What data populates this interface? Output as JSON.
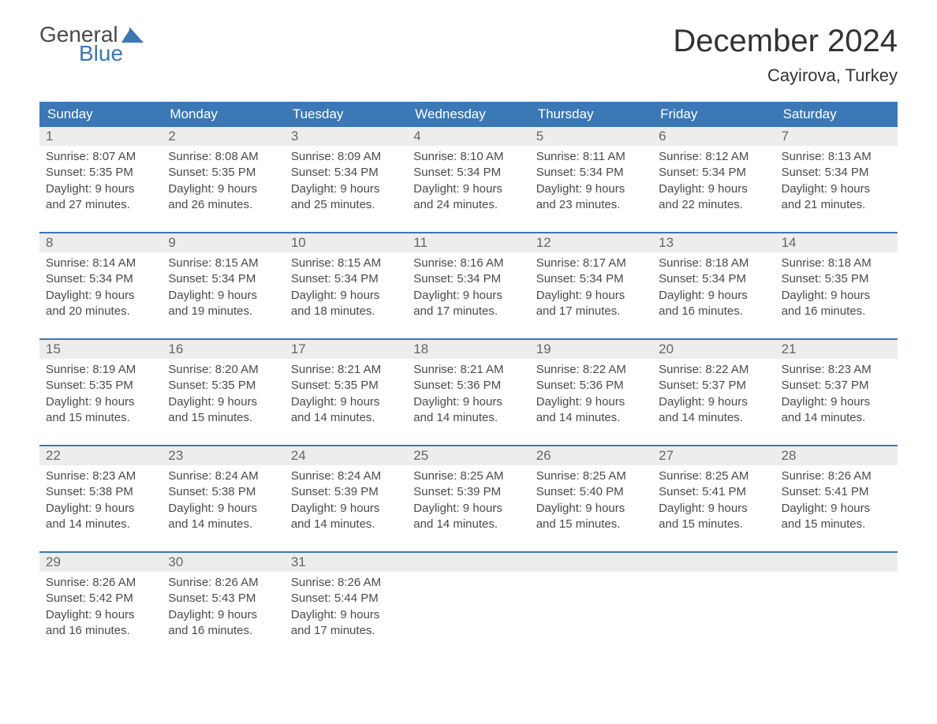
{
  "logo": {
    "line1": "General",
    "line2": "Blue"
  },
  "title": "December 2024",
  "location": "Cayirova, Turkey",
  "header_bg": "#3b78b5",
  "days_of_week": [
    "Sunday",
    "Monday",
    "Tuesday",
    "Wednesday",
    "Thursday",
    "Friday",
    "Saturday"
  ],
  "weeks": [
    [
      {
        "n": "1",
        "sr": "8:07 AM",
        "ss": "5:35 PM",
        "dl": "9 hours and 27 minutes."
      },
      {
        "n": "2",
        "sr": "8:08 AM",
        "ss": "5:35 PM",
        "dl": "9 hours and 26 minutes."
      },
      {
        "n": "3",
        "sr": "8:09 AM",
        "ss": "5:34 PM",
        "dl": "9 hours and 25 minutes."
      },
      {
        "n": "4",
        "sr": "8:10 AM",
        "ss": "5:34 PM",
        "dl": "9 hours and 24 minutes."
      },
      {
        "n": "5",
        "sr": "8:11 AM",
        "ss": "5:34 PM",
        "dl": "9 hours and 23 minutes."
      },
      {
        "n": "6",
        "sr": "8:12 AM",
        "ss": "5:34 PM",
        "dl": "9 hours and 22 minutes."
      },
      {
        "n": "7",
        "sr": "8:13 AM",
        "ss": "5:34 PM",
        "dl": "9 hours and 21 minutes."
      }
    ],
    [
      {
        "n": "8",
        "sr": "8:14 AM",
        "ss": "5:34 PM",
        "dl": "9 hours and 20 minutes."
      },
      {
        "n": "9",
        "sr": "8:15 AM",
        "ss": "5:34 PM",
        "dl": "9 hours and 19 minutes."
      },
      {
        "n": "10",
        "sr": "8:15 AM",
        "ss": "5:34 PM",
        "dl": "9 hours and 18 minutes."
      },
      {
        "n": "11",
        "sr": "8:16 AM",
        "ss": "5:34 PM",
        "dl": "9 hours and 17 minutes."
      },
      {
        "n": "12",
        "sr": "8:17 AM",
        "ss": "5:34 PM",
        "dl": "9 hours and 17 minutes."
      },
      {
        "n": "13",
        "sr": "8:18 AM",
        "ss": "5:34 PM",
        "dl": "9 hours and 16 minutes."
      },
      {
        "n": "14",
        "sr": "8:18 AM",
        "ss": "5:35 PM",
        "dl": "9 hours and 16 minutes."
      }
    ],
    [
      {
        "n": "15",
        "sr": "8:19 AM",
        "ss": "5:35 PM",
        "dl": "9 hours and 15 minutes."
      },
      {
        "n": "16",
        "sr": "8:20 AM",
        "ss": "5:35 PM",
        "dl": "9 hours and 15 minutes."
      },
      {
        "n": "17",
        "sr": "8:21 AM",
        "ss": "5:35 PM",
        "dl": "9 hours and 14 minutes."
      },
      {
        "n": "18",
        "sr": "8:21 AM",
        "ss": "5:36 PM",
        "dl": "9 hours and 14 minutes."
      },
      {
        "n": "19",
        "sr": "8:22 AM",
        "ss": "5:36 PM",
        "dl": "9 hours and 14 minutes."
      },
      {
        "n": "20",
        "sr": "8:22 AM",
        "ss": "5:37 PM",
        "dl": "9 hours and 14 minutes."
      },
      {
        "n": "21",
        "sr": "8:23 AM",
        "ss": "5:37 PM",
        "dl": "9 hours and 14 minutes."
      }
    ],
    [
      {
        "n": "22",
        "sr": "8:23 AM",
        "ss": "5:38 PM",
        "dl": "9 hours and 14 minutes."
      },
      {
        "n": "23",
        "sr": "8:24 AM",
        "ss": "5:38 PM",
        "dl": "9 hours and 14 minutes."
      },
      {
        "n": "24",
        "sr": "8:24 AM",
        "ss": "5:39 PM",
        "dl": "9 hours and 14 minutes."
      },
      {
        "n": "25",
        "sr": "8:25 AM",
        "ss": "5:39 PM",
        "dl": "9 hours and 14 minutes."
      },
      {
        "n": "26",
        "sr": "8:25 AM",
        "ss": "5:40 PM",
        "dl": "9 hours and 15 minutes."
      },
      {
        "n": "27",
        "sr": "8:25 AM",
        "ss": "5:41 PM",
        "dl": "9 hours and 15 minutes."
      },
      {
        "n": "28",
        "sr": "8:26 AM",
        "ss": "5:41 PM",
        "dl": "9 hours and 15 minutes."
      }
    ],
    [
      {
        "n": "29",
        "sr": "8:26 AM",
        "ss": "5:42 PM",
        "dl": "9 hours and 16 minutes."
      },
      {
        "n": "30",
        "sr": "8:26 AM",
        "ss": "5:43 PM",
        "dl": "9 hours and 16 minutes."
      },
      {
        "n": "31",
        "sr": "8:26 AM",
        "ss": "5:44 PM",
        "dl": "9 hours and 17 minutes."
      },
      null,
      null,
      null,
      null
    ]
  ],
  "labels": {
    "sunrise": "Sunrise: ",
    "sunset": "Sunset: ",
    "daylight": "Daylight: "
  }
}
